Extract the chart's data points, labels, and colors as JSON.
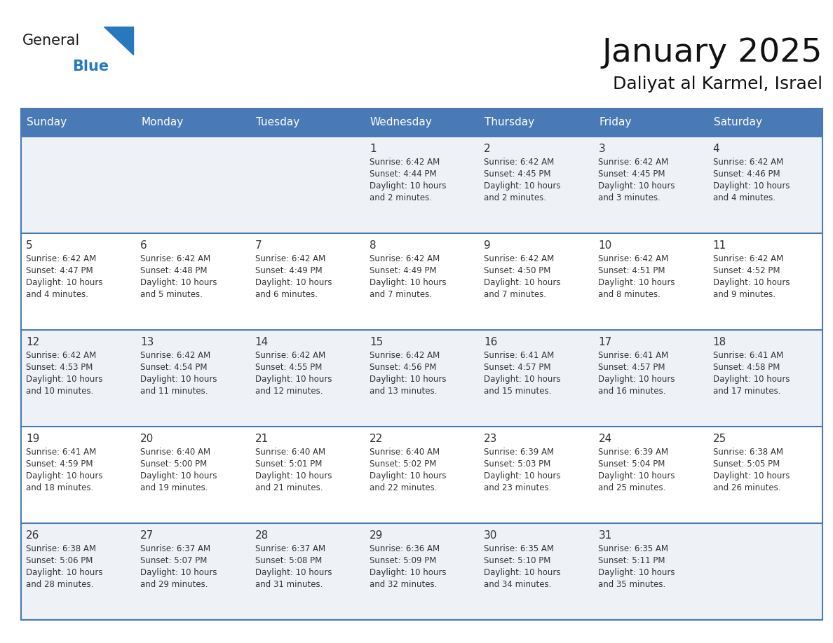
{
  "title": "January 2025",
  "subtitle": "Daliyat al Karmel, Israel",
  "days_of_week": [
    "Sunday",
    "Monday",
    "Tuesday",
    "Wednesday",
    "Thursday",
    "Friday",
    "Saturday"
  ],
  "header_bg": "#4a7ab5",
  "header_text": "#ffffff",
  "row_bg_odd": "#eef2f7",
  "row_bg_even": "#ffffff",
  "grid_line_color": "#4a7ab5",
  "text_color": "#333333",
  "cell_data": [
    [
      "",
      "",
      "",
      "1\nSunrise: 6:42 AM\nSunset: 4:44 PM\nDaylight: 10 hours\nand 2 minutes.",
      "2\nSunrise: 6:42 AM\nSunset: 4:45 PM\nDaylight: 10 hours\nand 2 minutes.",
      "3\nSunrise: 6:42 AM\nSunset: 4:45 PM\nDaylight: 10 hours\nand 3 minutes.",
      "4\nSunrise: 6:42 AM\nSunset: 4:46 PM\nDaylight: 10 hours\nand 4 minutes."
    ],
    [
      "5\nSunrise: 6:42 AM\nSunset: 4:47 PM\nDaylight: 10 hours\nand 4 minutes.",
      "6\nSunrise: 6:42 AM\nSunset: 4:48 PM\nDaylight: 10 hours\nand 5 minutes.",
      "7\nSunrise: 6:42 AM\nSunset: 4:49 PM\nDaylight: 10 hours\nand 6 minutes.",
      "8\nSunrise: 6:42 AM\nSunset: 4:49 PM\nDaylight: 10 hours\nand 7 minutes.",
      "9\nSunrise: 6:42 AM\nSunset: 4:50 PM\nDaylight: 10 hours\nand 7 minutes.",
      "10\nSunrise: 6:42 AM\nSunset: 4:51 PM\nDaylight: 10 hours\nand 8 minutes.",
      "11\nSunrise: 6:42 AM\nSunset: 4:52 PM\nDaylight: 10 hours\nand 9 minutes."
    ],
    [
      "12\nSunrise: 6:42 AM\nSunset: 4:53 PM\nDaylight: 10 hours\nand 10 minutes.",
      "13\nSunrise: 6:42 AM\nSunset: 4:54 PM\nDaylight: 10 hours\nand 11 minutes.",
      "14\nSunrise: 6:42 AM\nSunset: 4:55 PM\nDaylight: 10 hours\nand 12 minutes.",
      "15\nSunrise: 6:42 AM\nSunset: 4:56 PM\nDaylight: 10 hours\nand 13 minutes.",
      "16\nSunrise: 6:41 AM\nSunset: 4:57 PM\nDaylight: 10 hours\nand 15 minutes.",
      "17\nSunrise: 6:41 AM\nSunset: 4:57 PM\nDaylight: 10 hours\nand 16 minutes.",
      "18\nSunrise: 6:41 AM\nSunset: 4:58 PM\nDaylight: 10 hours\nand 17 minutes."
    ],
    [
      "19\nSunrise: 6:41 AM\nSunset: 4:59 PM\nDaylight: 10 hours\nand 18 minutes.",
      "20\nSunrise: 6:40 AM\nSunset: 5:00 PM\nDaylight: 10 hours\nand 19 minutes.",
      "21\nSunrise: 6:40 AM\nSunset: 5:01 PM\nDaylight: 10 hours\nand 21 minutes.",
      "22\nSunrise: 6:40 AM\nSunset: 5:02 PM\nDaylight: 10 hours\nand 22 minutes.",
      "23\nSunrise: 6:39 AM\nSunset: 5:03 PM\nDaylight: 10 hours\nand 23 minutes.",
      "24\nSunrise: 6:39 AM\nSunset: 5:04 PM\nDaylight: 10 hours\nand 25 minutes.",
      "25\nSunrise: 6:38 AM\nSunset: 5:05 PM\nDaylight: 10 hours\nand 26 minutes."
    ],
    [
      "26\nSunrise: 6:38 AM\nSunset: 5:06 PM\nDaylight: 10 hours\nand 28 minutes.",
      "27\nSunrise: 6:37 AM\nSunset: 5:07 PM\nDaylight: 10 hours\nand 29 minutes.",
      "28\nSunrise: 6:37 AM\nSunset: 5:08 PM\nDaylight: 10 hours\nand 31 minutes.",
      "29\nSunrise: 6:36 AM\nSunset: 5:09 PM\nDaylight: 10 hours\nand 32 minutes.",
      "30\nSunrise: 6:35 AM\nSunset: 5:10 PM\nDaylight: 10 hours\nand 34 minutes.",
      "31\nSunrise: 6:35 AM\nSunset: 5:11 PM\nDaylight: 10 hours\nand 35 minutes.",
      ""
    ]
  ],
  "logo_text_general": "General",
  "logo_text_blue": "Blue",
  "logo_blue": "#2878c0",
  "logo_dark": "#1a1a1a",
  "fig_width": 11.88,
  "fig_height": 9.18,
  "dpi": 100
}
